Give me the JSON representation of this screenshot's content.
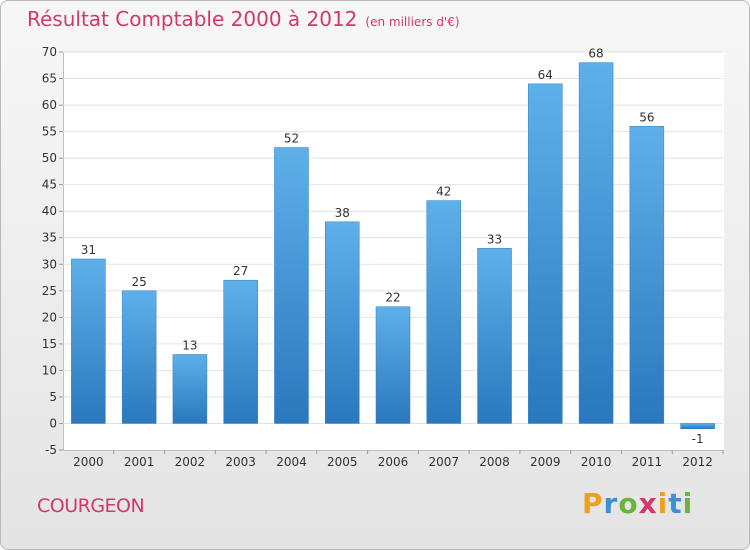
{
  "chart_data": {
    "type": "bar",
    "title": "Résultat Comptable 2000 à 2012",
    "subtitle": "(en milliers d'€)",
    "xlabel": "",
    "ylabel": "",
    "categories": [
      "2000",
      "2001",
      "2002",
      "2003",
      "2004",
      "2005",
      "2006",
      "2007",
      "2008",
      "2009",
      "2010",
      "2011",
      "2012"
    ],
    "values": [
      31,
      25,
      13,
      27,
      52,
      38,
      22,
      42,
      33,
      64,
      68,
      56,
      -1
    ],
    "ylim": [
      -5,
      70
    ],
    "yticks": [
      -5,
      0,
      5,
      10,
      15,
      20,
      25,
      30,
      35,
      40,
      45,
      50,
      55,
      60,
      65,
      70
    ],
    "grid": true,
    "bar_color": "#4a9fdf",
    "bar_color_dark": "#2a78bd"
  },
  "commune": "COURGEON",
  "brand": [
    "P",
    "r",
    "o",
    "x",
    "i",
    "t",
    "i"
  ]
}
